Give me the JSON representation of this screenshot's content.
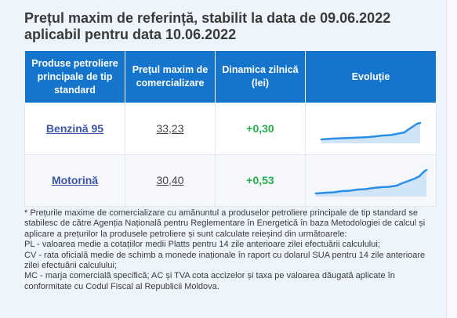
{
  "title": {
    "line1": "Prețul maxim de referință, stabilit la data de 09.06.2022",
    "line2": "aplicabil pentru data 10.06.2022"
  },
  "table": {
    "headers": [
      "Produse petroliere principale de tip standard",
      "Prețul maxim de comercializare",
      "Dinamica zilnică (lei)",
      "Evoluție"
    ],
    "rows": [
      {
        "product": "Benzină 95",
        "price": "33,23",
        "change": "+0,30"
      },
      {
        "product": "Motorină",
        "price": "30,40",
        "change": "+0,53"
      }
    ]
  },
  "colors": {
    "header_bg": "#1574cc",
    "product_link": "#3a55a5",
    "change_positive": "#22b04a",
    "sparkline_line": "#2a8ee6",
    "sparkline_fill": "#cfe4f7"
  },
  "footnote": {
    "intro": "* Prețurile maxime de comercializare cu amănuntul a produselor petroliere principale de tip standard se stabilesc de către Agenția Națională pentru Reglementare în Energetică în baza Metodologiei de calcul și aplicare a prețurilor la produsele petroliere și sunt calculate reieșind din următoarele:",
    "pl": "PL - valoarea medie a cotațiilor medii Platts pentru 14 zile anterioare zilei efectuării calculului;",
    "cv": "CV - rata oficială medie de schimb a monede inaționale în raport cu dolarul SUA pentru 14 zile anterioare zilei efectuării calculului;",
    "mc": "MC - marja comercială specifică; AC și TVA cota accizelor și taxa pe valoarea dăugată aplicate în conformitate cu Codul Fiscal al Republicii Moldova."
  }
}
